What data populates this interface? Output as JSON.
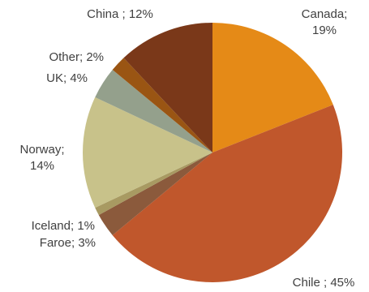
{
  "chart_data": {
    "type": "pie",
    "title": "",
    "start_angle_deg": 0,
    "direction": "clockwise",
    "slices": [
      {
        "name": "Canada",
        "value": 19,
        "label_lines": [
          "Canada;",
          "19%"
        ],
        "color": "#E58A17"
      },
      {
        "name": "Chile",
        "value": 45,
        "label_lines": [
          "Chile ; 45%"
        ],
        "color": "#C0572C"
      },
      {
        "name": "Faroe",
        "value": 3,
        "label_lines": [
          "Faroe; 3%"
        ],
        "color": "#8B5A3C"
      },
      {
        "name": "Iceland",
        "value": 1,
        "label_lines": [
          "Iceland; 1%"
        ],
        "color": "#A89A62"
      },
      {
        "name": "Norway",
        "value": 14,
        "label_lines": [
          "Norway;",
          "14%"
        ],
        "color": "#C8C28A"
      },
      {
        "name": "UK",
        "value": 4,
        "label_lines": [
          "UK; 4%"
        ],
        "color": "#94A08C"
      },
      {
        "name": "Other",
        "value": 2,
        "label_lines": [
          "Other; 2%"
        ],
        "color": "#9A5513"
      },
      {
        "name": "China",
        "value": 12,
        "label_lines": [
          "China ; 12%"
        ],
        "color": "#7A3819"
      }
    ]
  }
}
